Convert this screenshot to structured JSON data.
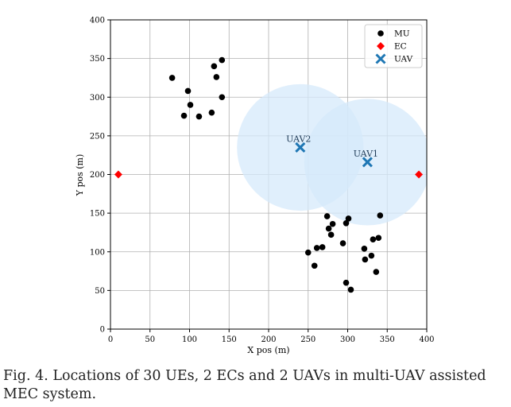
{
  "chart_data": {
    "type": "scatter",
    "title": "",
    "xlabel": "X pos (m)",
    "ylabel": "Y pos (m)",
    "xlim": [
      0,
      400
    ],
    "ylim": [
      0,
      400
    ],
    "xticks": [
      0,
      50,
      100,
      150,
      200,
      250,
      300,
      350,
      400
    ],
    "yticks": [
      0,
      50,
      100,
      150,
      200,
      250,
      300,
      350,
      400
    ],
    "grid": true,
    "legend_position": "top-right",
    "series": [
      {
        "name": "MU",
        "marker": "circle",
        "color": "#000000",
        "points": [
          [
            78,
            325
          ],
          [
            98,
            308
          ],
          [
            101,
            290
          ],
          [
            93,
            276
          ],
          [
            112,
            275
          ],
          [
            128,
            280
          ],
          [
            131,
            340
          ],
          [
            134,
            326
          ],
          [
            141,
            348
          ],
          [
            141,
            300
          ],
          [
            250,
            99
          ],
          [
            258,
            82
          ],
          [
            261,
            105
          ],
          [
            268,
            106
          ],
          [
            274,
            146
          ],
          [
            276,
            130
          ],
          [
            279,
            122
          ],
          [
            281,
            136
          ],
          [
            294,
            111
          ],
          [
            298,
            137
          ],
          [
            301,
            143
          ],
          [
            298,
            60
          ],
          [
            304,
            51
          ],
          [
            321,
            104
          ],
          [
            322,
            90
          ],
          [
            330,
            95
          ],
          [
            332,
            116
          ],
          [
            336,
            74
          ],
          [
            339,
            118
          ],
          [
            341,
            147
          ]
        ]
      },
      {
        "name": "EC",
        "marker": "diamond",
        "color": "#ff0000",
        "points": [
          [
            10,
            200
          ],
          [
            390,
            200
          ]
        ]
      },
      {
        "name": "UAV",
        "marker": "x",
        "color": "#1f77b4",
        "points": [
          [
            325,
            216
          ],
          [
            240,
            235
          ]
        ],
        "labels": [
          "UAV1",
          "UAV2"
        ],
        "coverage_radius": 80,
        "coverage_color": "#d6e9fb"
      }
    ]
  },
  "caption": "Fig. 4.   Locations of 30 UEs, 2 ECs and 2 UAVs in multi-UAV assisted MEC system."
}
